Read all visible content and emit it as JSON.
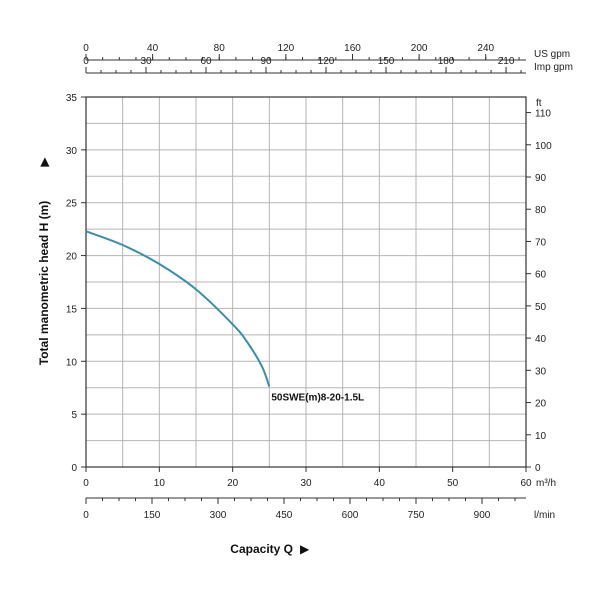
{
  "chart_data": {
    "type": "line",
    "ylabel": "Total manometric head H (m)",
    "xlabel": "Capacity Q",
    "grid": true,
    "x_axis": {
      "unit": "m³/h",
      "range": [
        0,
        60
      ],
      "ticks": [
        0,
        10,
        20,
        30,
        40,
        50,
        60
      ]
    },
    "y_axis": {
      "unit": "",
      "range": [
        0,
        35
      ],
      "ticks": [
        0,
        5,
        10,
        15,
        20,
        25,
        30,
        35
      ]
    },
    "x_axes_secondary": [
      {
        "unit": "l/min",
        "ticks": [
          0,
          150,
          300,
          450,
          600,
          750,
          900
        ],
        "factor_per_m3h": 16.6667
      },
      {
        "unit": "US gpm",
        "ticks": [
          0,
          40,
          80,
          120,
          160,
          200,
          240
        ],
        "factor_per_m3h": 4.4029
      },
      {
        "unit": "Imp gpm",
        "ticks": [
          0,
          30,
          60,
          90,
          120,
          150,
          180,
          210
        ],
        "factor_per_m3h": 3.6662
      }
    ],
    "y_axis_secondary": {
      "unit": "ft",
      "ticks": [
        0,
        10,
        20,
        30,
        40,
        50,
        60,
        70,
        80,
        90,
        100,
        110
      ],
      "factor_per_m": 3.28084
    },
    "series": [
      {
        "name": "50SWE(m)8-20-1.5L",
        "color": "#3a8fa8",
        "x": [
          0,
          5,
          10,
          15,
          20,
          22,
          24,
          25
        ],
        "y": [
          22.3,
          21.0,
          19.2,
          16.8,
          13.5,
          11.8,
          9.5,
          7.6
        ]
      }
    ]
  }
}
